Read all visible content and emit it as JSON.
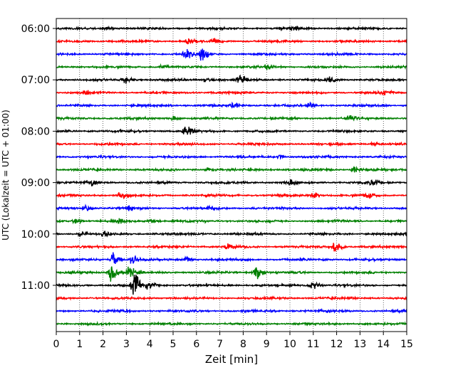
{
  "chart_data": {
    "type": "line",
    "title": "",
    "xlabel": "Zeit  [min]",
    "ylabel": "UTC (Lokalzeit = UTC + 01:00)",
    "xlim": [
      0,
      15
    ],
    "x_ticks": [
      "0",
      "1",
      "2",
      "3",
      "4",
      "5",
      "6",
      "7",
      "8",
      "9",
      "10",
      "11",
      "12",
      "13",
      "14",
      "15"
    ],
    "y_ticks": [
      "06:00",
      "07:00",
      "08:00",
      "09:00",
      "10:00",
      "11:00"
    ],
    "grid": "vertical dotted",
    "trace_colors": [
      "#000000",
      "#ff0000",
      "#0000ff",
      "#008000"
    ],
    "traces": [
      {
        "start": "06:00",
        "color": "#000000",
        "events": [
          {
            "x": 2.1,
            "amp": 0.25
          },
          {
            "x": 10.1,
            "amp": 0.3
          }
        ]
      },
      {
        "start": "06:15",
        "color": "#ff0000",
        "events": [
          {
            "x": 5.6,
            "amp": 0.3
          },
          {
            "x": 6.7,
            "amp": 0.25
          }
        ]
      },
      {
        "start": "06:30",
        "color": "#0000ff",
        "events": [
          {
            "x": 5.5,
            "amp": 0.8
          },
          {
            "x": 6.2,
            "amp": 0.9
          }
        ]
      },
      {
        "start": "06:45",
        "color": "#008000",
        "events": [
          {
            "x": 4.5,
            "amp": 0.35
          },
          {
            "x": 9.0,
            "amp": 0.35
          }
        ]
      },
      {
        "start": "07:00",
        "color": "#000000",
        "events": [
          {
            "x": 2.9,
            "amp": 0.5
          },
          {
            "x": 6.4,
            "amp": 0.4
          },
          {
            "x": 7.8,
            "amp": 0.7
          },
          {
            "x": 11.6,
            "amp": 0.5
          }
        ]
      },
      {
        "start": "07:15",
        "color": "#ff0000",
        "events": [
          {
            "x": 1.3,
            "amp": 0.3
          },
          {
            "x": 14.0,
            "amp": 0.3
          }
        ]
      },
      {
        "start": "07:30",
        "color": "#0000ff",
        "events": [
          {
            "x": 7.5,
            "amp": 0.4
          },
          {
            "x": 10.8,
            "amp": 0.4
          }
        ]
      },
      {
        "start": "07:45",
        "color": "#008000",
        "events": [
          {
            "x": 5.0,
            "amp": 0.3
          },
          {
            "x": 12.5,
            "amp": 0.45
          }
        ]
      },
      {
        "start": "08:00",
        "color": "#000000",
        "events": [
          {
            "x": 5.5,
            "amp": 0.8
          }
        ]
      },
      {
        "start": "08:15",
        "color": "#ff0000",
        "events": [
          {
            "x": 13.5,
            "amp": 0.25
          }
        ]
      },
      {
        "start": "08:30",
        "color": "#0000ff",
        "events": [
          {
            "x": 9.5,
            "amp": 0.25
          }
        ]
      },
      {
        "start": "08:45",
        "color": "#008000",
        "events": [
          {
            "x": 6.5,
            "amp": 0.3
          },
          {
            "x": 12.7,
            "amp": 0.4
          }
        ]
      },
      {
        "start": "09:00",
        "color": "#000000",
        "events": [
          {
            "x": 1.5,
            "amp": 0.35
          },
          {
            "x": 10.0,
            "amp": 0.35
          },
          {
            "x": 13.5,
            "amp": 0.35
          }
        ]
      },
      {
        "start": "09:15",
        "color": "#ff0000",
        "events": [
          {
            "x": 2.7,
            "amp": 0.4
          },
          {
            "x": 11.0,
            "amp": 0.45
          },
          {
            "x": 13.3,
            "amp": 0.45
          }
        ]
      },
      {
        "start": "09:30",
        "color": "#0000ff",
        "events": [
          {
            "x": 1.2,
            "amp": 0.4
          },
          {
            "x": 3.0,
            "amp": 0.35
          },
          {
            "x": 6.5,
            "amp": 0.35
          }
        ]
      },
      {
        "start": "09:45",
        "color": "#008000",
        "events": [
          {
            "x": 0.8,
            "amp": 0.35
          },
          {
            "x": 2.6,
            "amp": 0.35
          },
          {
            "x": 4.0,
            "amp": 0.35
          }
        ]
      },
      {
        "start": "10:00",
        "color": "#000000",
        "events": [
          {
            "x": 1.0,
            "amp": 0.35
          },
          {
            "x": 2.0,
            "amp": 0.3
          }
        ]
      },
      {
        "start": "10:15",
        "color": "#ff0000",
        "events": [
          {
            "x": 7.3,
            "amp": 0.35
          },
          {
            "x": 11.9,
            "amp": 0.7
          }
        ]
      },
      {
        "start": "10:30",
        "color": "#0000ff",
        "events": [
          {
            "x": 2.4,
            "amp": 1.2
          },
          {
            "x": 3.2,
            "amp": 0.7
          },
          {
            "x": 5.5,
            "amp": 0.35
          }
        ]
      },
      {
        "start": "10:45",
        "color": "#008000",
        "events": [
          {
            "x": 2.3,
            "amp": 1.3
          },
          {
            "x": 3.1,
            "amp": 1.0
          },
          {
            "x": 8.5,
            "amp": 1.1
          }
        ]
      },
      {
        "start": "11:00",
        "color": "#000000",
        "events": [
          {
            "x": 3.3,
            "amp": 1.8
          },
          {
            "x": 3.9,
            "amp": 0.6
          },
          {
            "x": 10.9,
            "amp": 0.7
          }
        ]
      },
      {
        "start": "11:15",
        "color": "#ff0000",
        "events": []
      },
      {
        "start": "11:30",
        "color": "#0000ff",
        "events": []
      },
      {
        "start": "11:45",
        "color": "#008000",
        "events": []
      }
    ]
  }
}
